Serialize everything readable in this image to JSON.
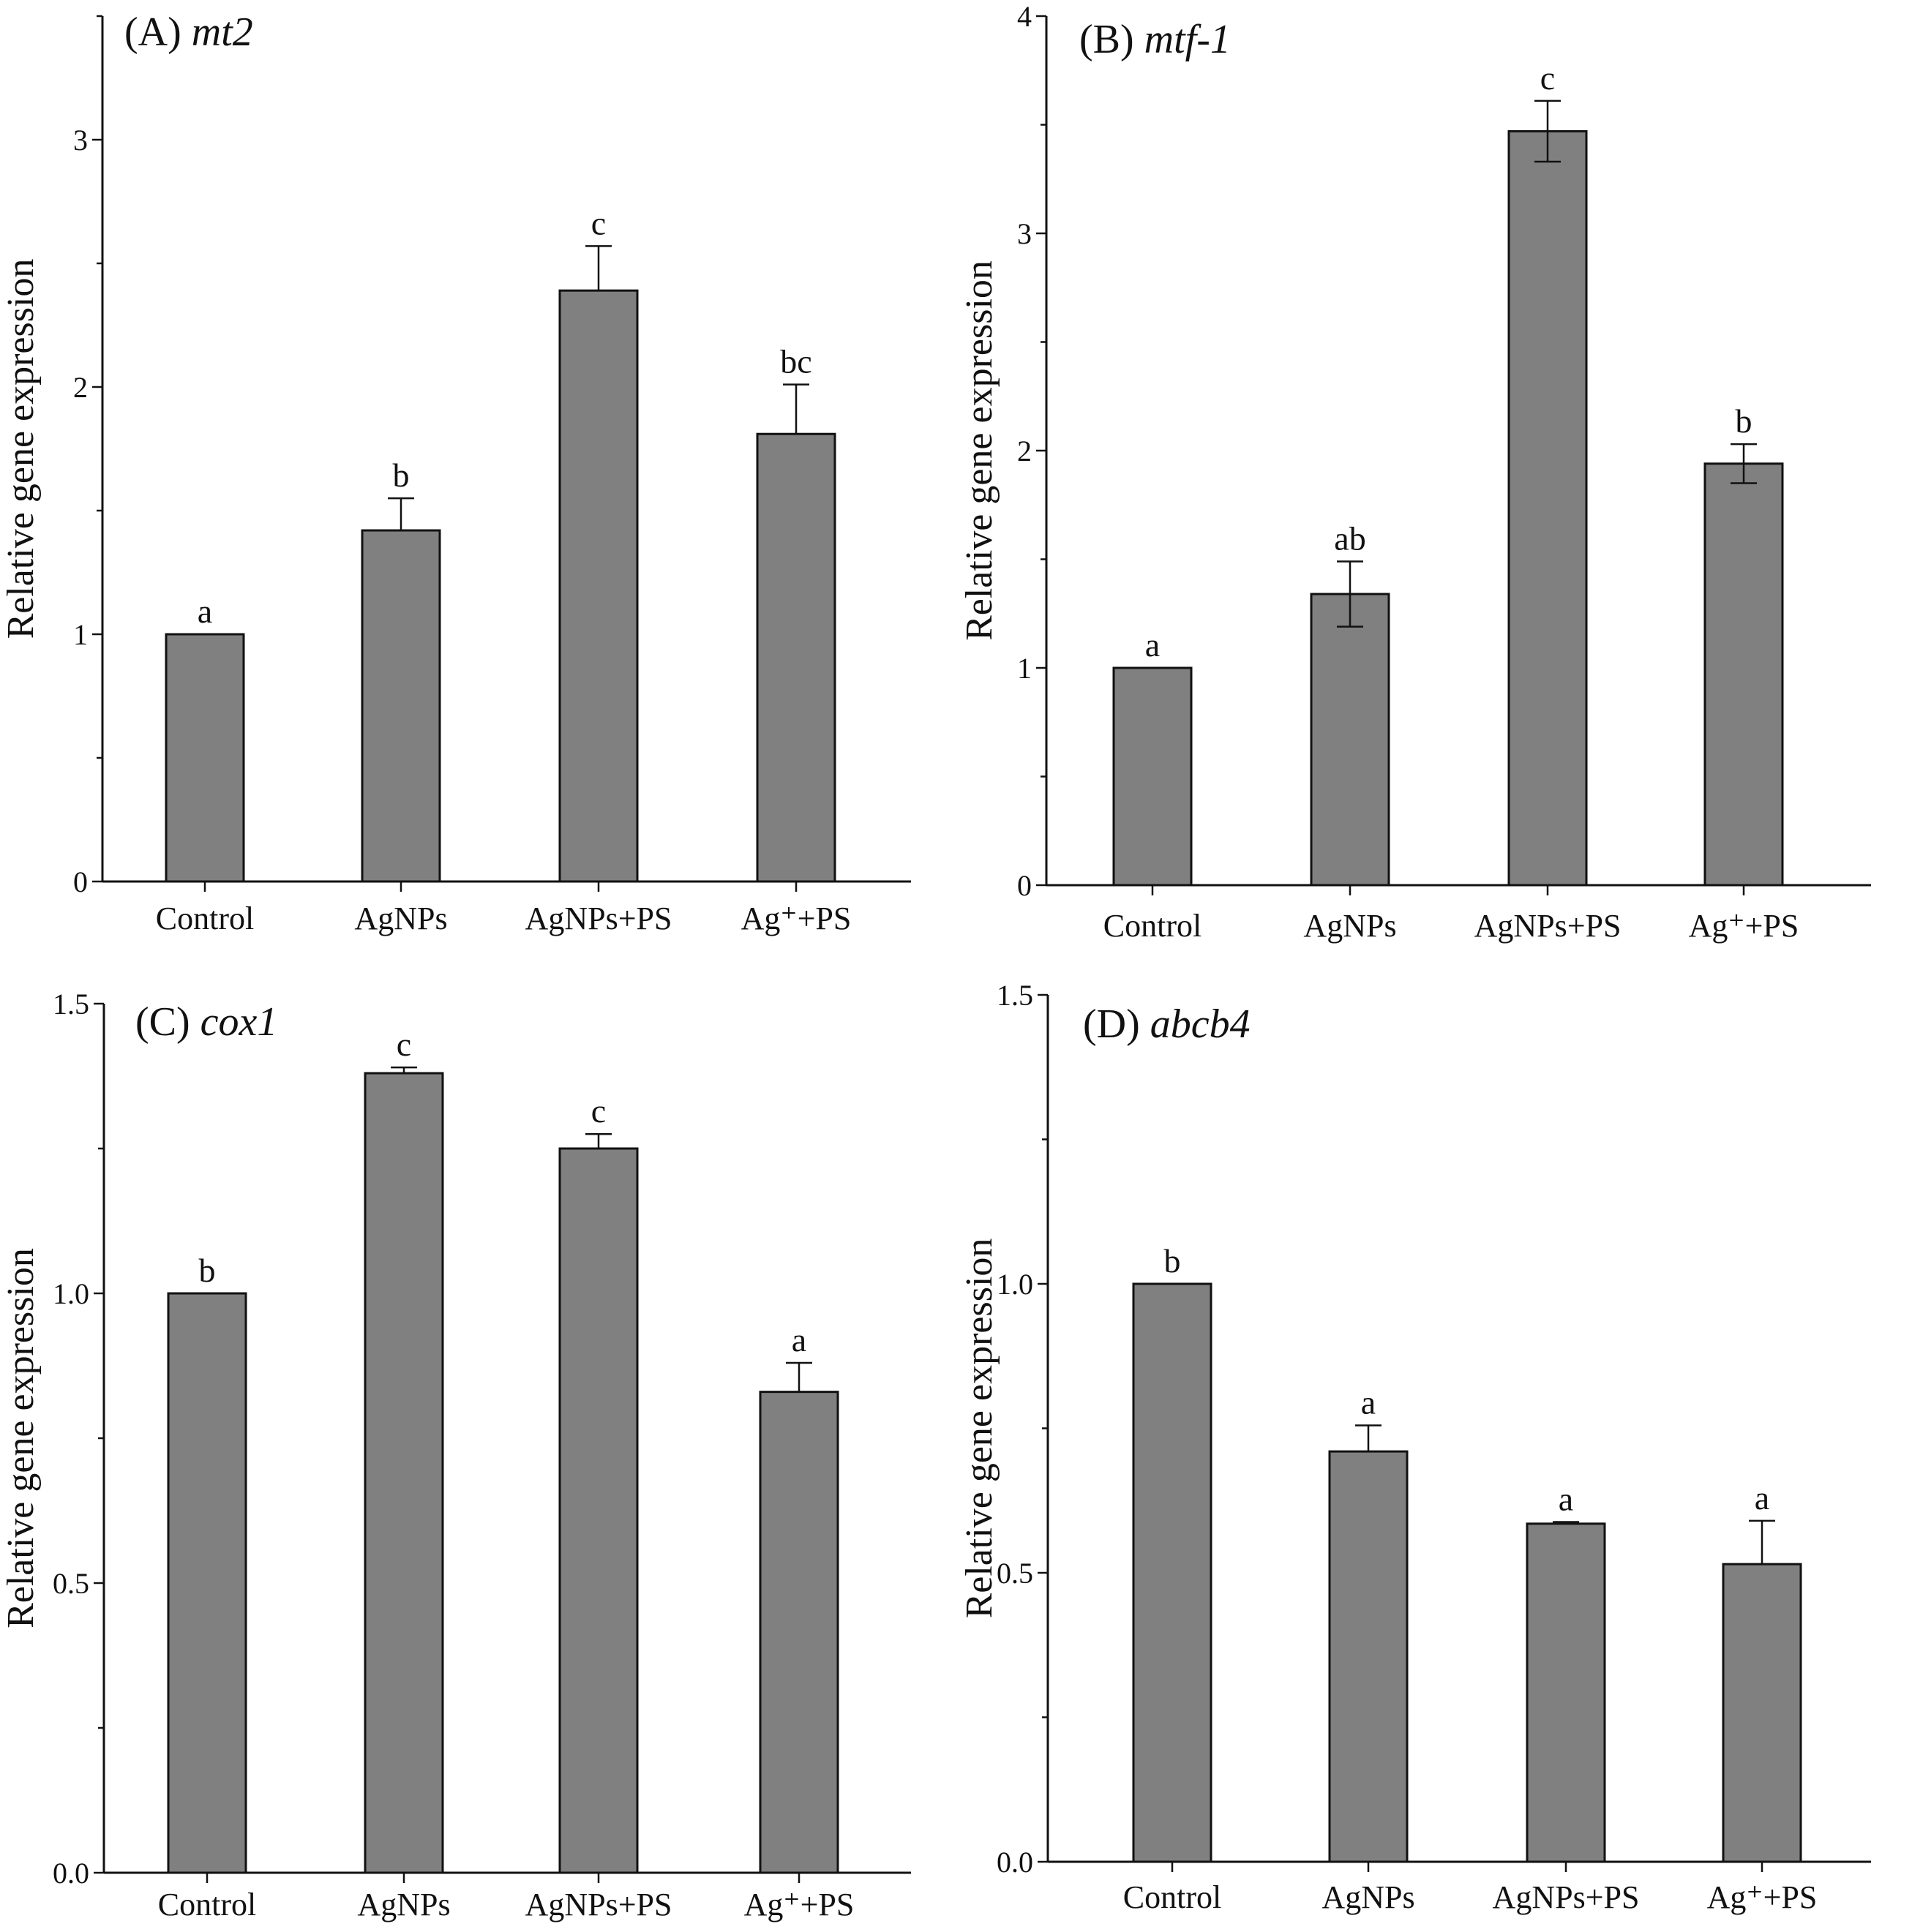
{
  "chart_data": [
    {
      "type": "bar",
      "panel": "(A)",
      "gene": "mt2",
      "ylabel": "Relative gene expression",
      "ylim": [
        0,
        3.5
      ],
      "yticks": [
        "0",
        "1",
        "2",
        "3"
      ],
      "categories": [
        "Control",
        "AgNPs",
        "AgNPs+PS",
        "Ag⁺+PS"
      ],
      "values": [
        1.0,
        1.42,
        2.39,
        1.81
      ],
      "errors": [
        0,
        0.13,
        0.18,
        0.2
      ],
      "significance": [
        "a",
        "b",
        "c",
        "bc"
      ],
      "error_color": "#888888"
    },
    {
      "type": "bar",
      "panel": "(B)",
      "gene": "mtf-1",
      "ylabel": "Relative gene expression",
      "ylim": [
        0,
        4
      ],
      "yticks": [
        "0",
        "1",
        "2",
        "3",
        "4"
      ],
      "categories": [
        "Control",
        "AgNPs",
        "AgNPs+PS",
        "Ag⁺+PS"
      ],
      "values": [
        1.0,
        1.34,
        3.47,
        1.94
      ],
      "errors": [
        0,
        0.15,
        0.14,
        0.09
      ],
      "significance": [
        "a",
        "ab",
        "c",
        "b"
      ],
      "error_color": "#111111"
    },
    {
      "type": "bar",
      "panel": "(C)",
      "gene": "cox1",
      "ylabel": "Relative gene expression",
      "ylim": [
        0,
        1.5
      ],
      "yticks": [
        "0.0",
        "0.5",
        "1.0",
        "1.5"
      ],
      "categories": [
        "Control",
        "AgNPs",
        "AgNPs+PS",
        "Ag⁺+PS"
      ],
      "values": [
        1.0,
        1.38,
        1.25,
        0.83
      ],
      "errors": [
        0,
        0.01,
        0.025,
        0.05
      ],
      "significance": [
        "b",
        "c",
        "c",
        "a"
      ],
      "error_color": "#888888"
    },
    {
      "type": "bar",
      "panel": "(D)",
      "gene": "abcb4",
      "ylabel": "Relative gene expression",
      "ylim": [
        0,
        1.5
      ],
      "yticks": [
        "0.0",
        "0.5",
        "1.0",
        "1.5"
      ],
      "categories": [
        "Control",
        "AgNPs",
        "AgNPs+PS",
        "Ag⁺+PS"
      ],
      "values": [
        1.0,
        0.71,
        0.585,
        0.515
      ],
      "errors": [
        0,
        0.045,
        0.003,
        0.075
      ],
      "significance": [
        "b",
        "a",
        "a",
        "a"
      ],
      "error_color": "#888888"
    }
  ],
  "colors": {
    "bar": "#808080",
    "axis": "#111111"
  }
}
